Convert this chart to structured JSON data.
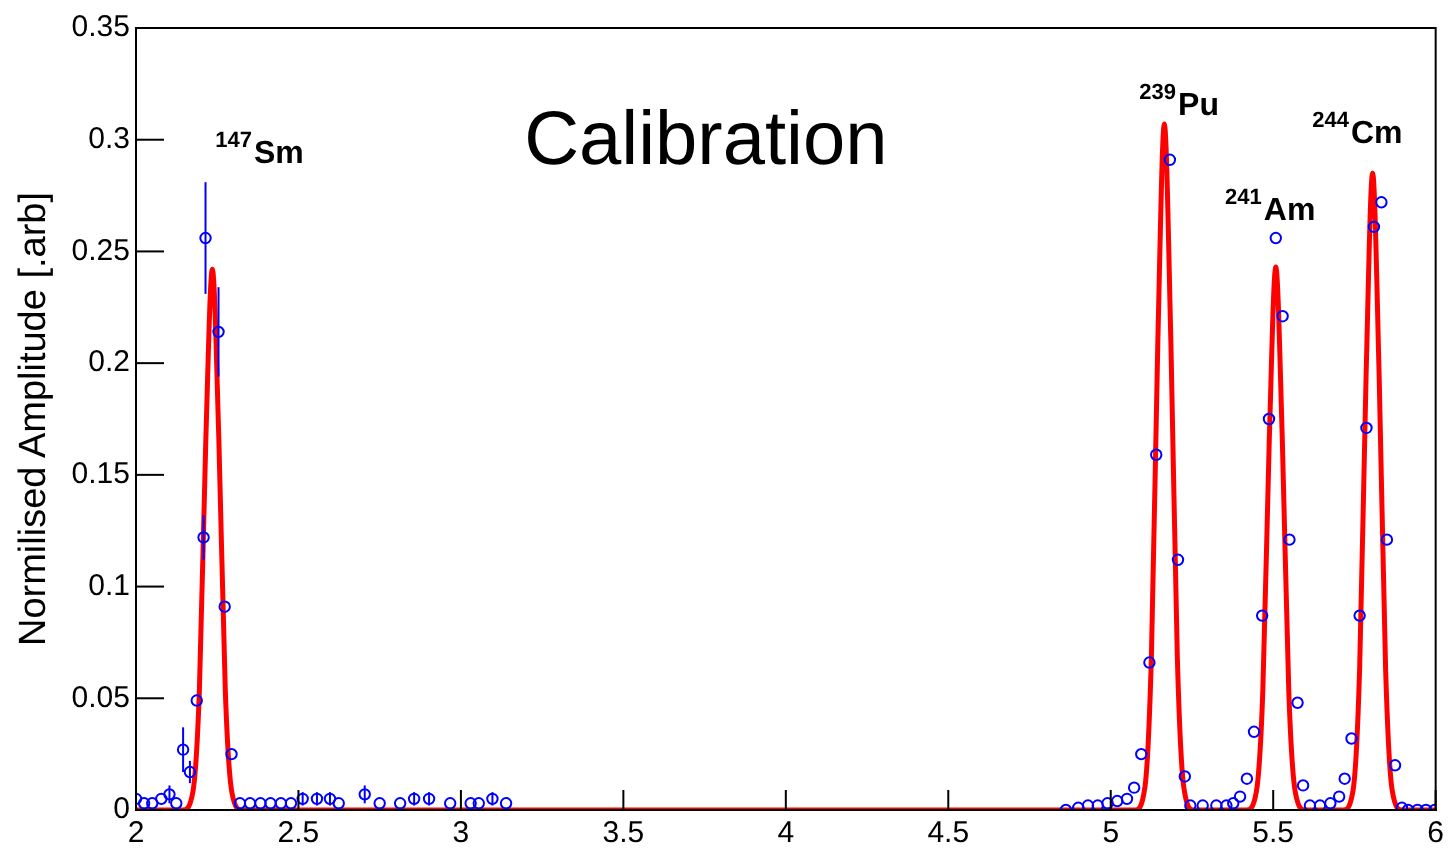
{
  "chart_data": {
    "type": "scatter",
    "title": "Calibration",
    "ylabel": "Normilised Amplitude [.arb]",
    "xlim": [
      2,
      6
    ],
    "xticks": [
      2,
      2.5,
      3,
      3.5,
      4,
      4.5,
      5,
      5.5,
      6
    ],
    "ylim": [
      0,
      0.35
    ],
    "yticks": [
      0,
      0.05,
      0.1,
      0.15,
      0.2,
      0.25,
      0.3,
      0.35
    ],
    "grid": false,
    "legend": false,
    "annotations": [
      "$^{147}$Sm",
      "$^{239}$Pu",
      "$^{241}$Am",
      "$^{244}$Cm"
    ],
    "series": [
      {
        "color": "#0000ff",
        "marker": "circle",
        "x": [
          2.0,
          2.025,
          2.05,
          2.078,
          2.103,
          2.124,
          2.145,
          2.166,
          2.187,
          2.208,
          2.214,
          2.254,
          2.273,
          2.294,
          2.32,
          2.351,
          2.383,
          2.414,
          2.446,
          2.477,
          2.513,
          2.557,
          2.597,
          2.624,
          2.704,
          2.75,
          2.813,
          2.856,
          2.902,
          2.967,
          3.03,
          3.055,
          3.097,
          3.139,
          4.862,
          4.9,
          4.93,
          4.96,
          4.99,
          5.02,
          5.05,
          5.072,
          5.094,
          5.119,
          5.14,
          5.182,
          5.207,
          5.228,
          5.245,
          5.283,
          5.325,
          5.356,
          5.377,
          5.398,
          5.419,
          5.441,
          5.466,
          5.487,
          5.508,
          5.529,
          5.55,
          5.575,
          5.592,
          5.613,
          5.644,
          5.676,
          5.703,
          5.72,
          5.741,
          5.766,
          5.787,
          5.81,
          5.833,
          5.85,
          5.875,
          5.896,
          5.915,
          5.944,
          5.97,
          5.997
        ],
        "values": [
          0.005,
          0.003,
          0.003,
          0.005,
          0.007,
          0.003,
          0.027,
          0.017,
          0.049,
          0.122,
          0.256,
          0.214,
          0.091,
          0.025,
          0.003,
          0.003,
          0.003,
          0.003,
          0.003,
          0.003,
          0.005,
          0.005,
          0.005,
          0.003,
          0.007,
          0.003,
          0.003,
          0.005,
          0.005,
          0.003,
          0.003,
          0.003,
          0.005,
          0.003,
          0,
          0.001,
          0.002,
          0.002,
          0.003,
          0.004,
          0.005,
          0.01,
          0.025,
          0.066,
          0.159,
          0.291,
          0.112,
          0.015,
          0.002,
          0.002,
          0.002,
          0.002,
          0.003,
          0.006,
          0.014,
          0.035,
          0.087,
          0.175,
          0.256,
          0.221,
          0.121,
          0.048,
          0.011,
          0.002,
          0.002,
          0.003,
          0.006,
          0.014,
          0.032,
          0.087,
          0.171,
          0.261,
          0.272,
          0.121,
          0.02,
          0.001,
          0,
          0,
          0,
          0
        ],
        "errors": [
          0.003,
          null,
          null,
          null,
          0.004,
          null,
          0.01,
          0.005,
          null,
          0.01,
          0.025,
          0.02,
          null,
          null,
          null,
          null,
          null,
          null,
          null,
          null,
          0.003,
          0.003,
          0.003,
          null,
          0.004,
          null,
          null,
          0.003,
          0.003,
          null,
          null,
          null,
          0.003,
          null,
          null,
          null,
          null,
          null,
          null,
          null,
          null,
          null,
          null,
          null,
          null,
          null,
          null,
          null,
          null,
          null,
          null,
          null,
          null,
          null,
          null,
          null,
          null,
          null,
          null,
          null,
          null,
          null,
          null,
          null,
          null,
          null,
          null,
          null,
          null,
          null,
          null,
          null,
          null,
          null,
          null,
          null,
          null,
          null,
          null,
          null
        ]
      },
      {
        "type": "line",
        "color": "#ff0000",
        "marker": "none",
        "x": [
          2.0,
          2.145,
          2.175,
          2.195,
          2.215,
          2.235,
          2.255,
          2.275,
          2.295,
          2.325,
          5.075,
          5.105,
          5.125,
          5.145,
          5.165,
          5.185,
          5.205,
          5.225,
          5.255,
          5.418,
          5.448,
          5.468,
          5.488,
          5.508,
          5.528,
          5.548,
          5.568,
          5.598,
          5.716,
          5.746,
          5.766,
          5.786,
          5.806,
          5.826,
          5.846,
          5.866,
          5.896,
          6.0
        ],
        "values": [
          0,
          0,
          0.008,
          0.053,
          0.166,
          0.242,
          0.166,
          0.053,
          0.008,
          0,
          0,
          0.01,
          0.068,
          0.21,
          0.307,
          0.21,
          0.068,
          0.01,
          0,
          0,
          0.008,
          0.053,
          0.166,
          0.243,
          0.166,
          0.053,
          0.008,
          0,
          0,
          0.009,
          0.063,
          0.195,
          0.285,
          0.195,
          0.063,
          0.009,
          0,
          0
        ]
      }
    ]
  }
}
